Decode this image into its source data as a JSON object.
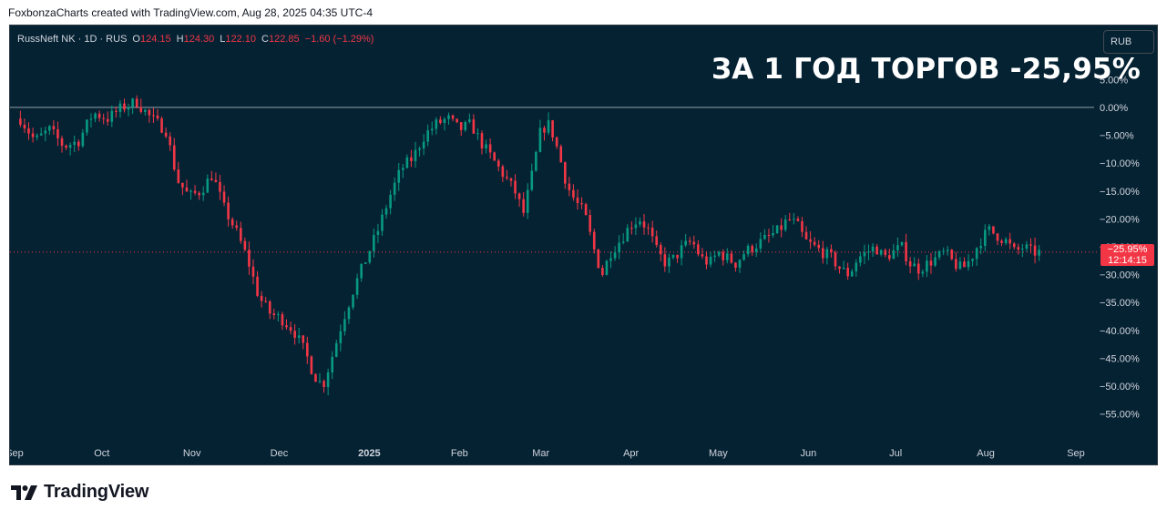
{
  "credit": "FoxbonzaCharts created with TradingView.com, Aug 28, 2025 04:35 UTC-4",
  "legend": {
    "symbol": "RussNeft NK · 1D · RUS",
    "open_key": "O",
    "open": "124.15",
    "high_key": "H",
    "high": "124.30",
    "low_key": "L",
    "low": "122.10",
    "close_key": "C",
    "close": "122.85",
    "change": "−1.60 (−1.29%)"
  },
  "currency_button": "RUB",
  "headline": "ЗА 1 ГОД ТОРГОВ -25,95%",
  "price_tag": {
    "value": "−25.95%",
    "countdown": "12:14:15"
  },
  "logo_text": "TradingView",
  "colors": {
    "background": "#052233",
    "up": "#089981",
    "down": "#f23645",
    "text": "#d1d4dc"
  },
  "chart_data": {
    "type": "candlestick",
    "y_unit": "percent change",
    "ylim": [
      -57.5,
      7.5
    ],
    "y_ticks": [
      {
        "v": 5,
        "label": "5.00%"
      },
      {
        "v": 0,
        "label": "0.00%"
      },
      {
        "v": -5,
        "label": "−5.00%"
      },
      {
        "v": -10,
        "label": "−10.00%"
      },
      {
        "v": -15,
        "label": "−15.00%"
      },
      {
        "v": -20,
        "label": "−20.00%"
      },
      {
        "v": -25,
        "label": "−25.00%"
      },
      {
        "v": -30,
        "label": "−30.00%"
      },
      {
        "v": -35,
        "label": "−35.00%"
      },
      {
        "v": -40,
        "label": "−40.00%"
      },
      {
        "v": -45,
        "label": "−45.00%"
      },
      {
        "v": -50,
        "label": "−50.00%"
      },
      {
        "v": -55,
        "label": "−55.00%"
      }
    ],
    "x_ticks": [
      {
        "day": 0,
        "label": "Sep"
      },
      {
        "day": 30,
        "label": "Oct"
      },
      {
        "day": 61,
        "label": "Nov"
      },
      {
        "day": 91,
        "label": "Dec"
      },
      {
        "day": 122,
        "label": "2025"
      },
      {
        "day": 153,
        "label": "Feb"
      },
      {
        "day": 181,
        "label": "Mar"
      },
      {
        "day": 212,
        "label": "Apr"
      },
      {
        "day": 242,
        "label": "May"
      },
      {
        "day": 273,
        "label": "Jun"
      },
      {
        "day": 303,
        "label": "Jul"
      },
      {
        "day": 334,
        "label": "Aug"
      },
      {
        "day": 365,
        "label": "Sep"
      }
    ],
    "x_range_days": [
      0,
      365
    ],
    "baseline": 0,
    "last_value": -25.95,
    "closes": [
      [
        2,
        -2
      ],
      [
        7,
        -6
      ],
      [
        12,
        -4
      ],
      [
        17,
        -7
      ],
      [
        22,
        -6
      ],
      [
        27,
        -1
      ],
      [
        32,
        -2
      ],
      [
        37,
        0
      ],
      [
        42,
        1
      ],
      [
        47,
        -2
      ],
      [
        52,
        -4
      ],
      [
        56,
        -13
      ],
      [
        60,
        -16
      ],
      [
        64,
        -15
      ],
      [
        68,
        -12
      ],
      [
        72,
        -18
      ],
      [
        76,
        -22
      ],
      [
        80,
        -27
      ],
      [
        84,
        -34
      ],
      [
        88,
        -37
      ],
      [
        92,
        -38
      ],
      [
        96,
        -40
      ],
      [
        100,
        -44
      ],
      [
        103,
        -48
      ],
      [
        106,
        -50
      ],
      [
        109,
        -45
      ],
      [
        113,
        -38
      ],
      [
        117,
        -32
      ],
      [
        121,
        -27
      ],
      [
        125,
        -22
      ],
      [
        129,
        -16
      ],
      [
        133,
        -11
      ],
      [
        137,
        -9
      ],
      [
        141,
        -5
      ],
      [
        145,
        -3
      ],
      [
        149,
        -2
      ],
      [
        153,
        -4
      ],
      [
        157,
        -3
      ],
      [
        160,
        -6
      ],
      [
        164,
        -9
      ],
      [
        168,
        -12
      ],
      [
        172,
        -15
      ],
      [
        175,
        -19
      ],
      [
        178,
        -12
      ],
      [
        181,
        -4
      ],
      [
        184,
        -3
      ],
      [
        187,
        -8
      ],
      [
        190,
        -14
      ],
      [
        193,
        -17
      ],
      [
        196,
        -19
      ],
      [
        199,
        -25
      ],
      [
        202,
        -30
      ],
      [
        205,
        -26
      ],
      [
        208,
        -24
      ],
      [
        212,
        -21
      ],
      [
        215,
        -20
      ],
      [
        218,
        -22
      ],
      [
        221,
        -26
      ],
      [
        224,
        -28
      ],
      [
        227,
        -27
      ],
      [
        230,
        -25
      ],
      [
        233,
        -24
      ],
      [
        236,
        -27
      ],
      [
        239,
        -28
      ],
      [
        242,
        -26
      ],
      [
        245,
        -27
      ],
      [
        248,
        -28
      ],
      [
        251,
        -26
      ],
      [
        254,
        -25
      ],
      [
        257,
        -24
      ],
      [
        260,
        -23
      ],
      [
        263,
        -22
      ],
      [
        266,
        -20
      ],
      [
        269,
        -21
      ],
      [
        272,
        -24
      ],
      [
        275,
        -25
      ],
      [
        278,
        -26
      ],
      [
        281,
        -27
      ],
      [
        284,
        -29
      ],
      [
        287,
        -30
      ],
      [
        290,
        -27
      ],
      [
        293,
        -26
      ],
      [
        296,
        -25
      ],
      [
        299,
        -27
      ],
      [
        302,
        -26
      ],
      [
        305,
        -25
      ],
      [
        308,
        -28
      ],
      [
        311,
        -29
      ],
      [
        314,
        -28
      ],
      [
        317,
        -27
      ],
      [
        320,
        -26
      ],
      [
        323,
        -28
      ],
      [
        326,
        -29
      ],
      [
        329,
        -27
      ],
      [
        332,
        -24
      ],
      [
        335,
        -22
      ],
      [
        338,
        -23
      ],
      [
        341,
        -24
      ],
      [
        344,
        -26
      ],
      [
        347,
        -25
      ],
      [
        350,
        -26
      ],
      [
        353,
        -26
      ]
    ]
  }
}
